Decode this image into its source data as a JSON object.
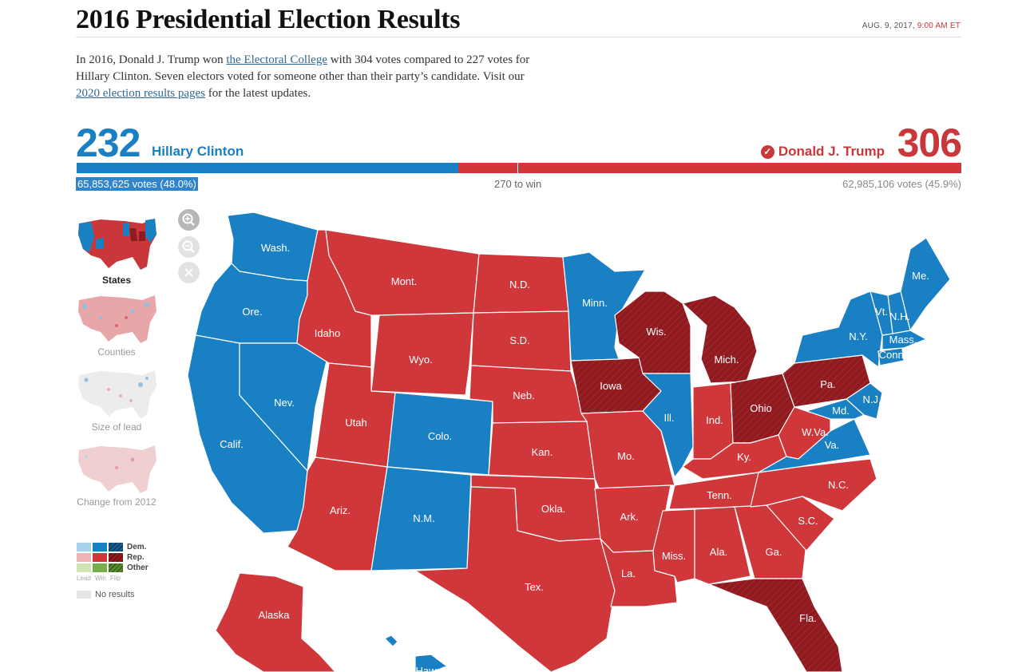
{
  "header": {
    "title": "2016 Presidential Election Results",
    "date": "AUG. 9, 2017,",
    "time": "9:00 AM ET"
  },
  "intro": {
    "t1": "In 2016, Donald J. Trump won ",
    "link1": "the Electoral College",
    "t2": " with 304 votes compared to 227 votes for Hillary Clinton. Seven electors voted for someone other than their party’s candidate. Visit our ",
    "link2": "2020 election results pages",
    "t3": " for the latest updates."
  },
  "tally": {
    "dem_votes": 232,
    "dem_name": "Hillary Clinton",
    "rep_votes": 306,
    "rep_name": "Donald J. Trump",
    "winner": "rep",
    "dem_popular": "65,853,625 votes (48.0%)",
    "rep_popular": "62,985,106 votes (45.9%)",
    "to_win": "270 to win",
    "total_ev": 538,
    "win_threshold": 270
  },
  "controls": {
    "zoom_in_icon": "zoom-in-icon",
    "zoom_out_icon": "zoom-out-icon",
    "reset_icon": "close-icon"
  },
  "map_views": [
    {
      "label": "States",
      "active": true
    },
    {
      "label": "Counties",
      "active": false
    },
    {
      "label": "Size of lead",
      "active": false
    },
    {
      "label": "Change from 2012",
      "active": false
    }
  ],
  "legend": {
    "rows": [
      "Dem.",
      "Rep.",
      "Other"
    ],
    "sub": [
      "Lead",
      "Win",
      "Flip"
    ],
    "no_results": "No results"
  },
  "colors": {
    "dem": "#1a80c4",
    "rep": "#d0373b",
    "rep_flip": "#8e1b20",
    "accent_time": "#c43c34"
  },
  "states": [
    {
      "label": "Wash.",
      "party": "dem"
    },
    {
      "label": "Ore.",
      "party": "dem"
    },
    {
      "label": "Calif.",
      "party": "dem"
    },
    {
      "label": "Nev.",
      "party": "dem"
    },
    {
      "label": "Idaho",
      "party": "rep"
    },
    {
      "label": "Mont.",
      "party": "rep"
    },
    {
      "label": "Wyo.",
      "party": "rep"
    },
    {
      "label": "Utah",
      "party": "rep"
    },
    {
      "label": "Ariz.",
      "party": "rep"
    },
    {
      "label": "Colo.",
      "party": "dem"
    },
    {
      "label": "N.M.",
      "party": "dem"
    },
    {
      "label": "N.D.",
      "party": "rep"
    },
    {
      "label": "S.D.",
      "party": "rep"
    },
    {
      "label": "Neb.",
      "party": "rep"
    },
    {
      "label": "Kan.",
      "party": "rep"
    },
    {
      "label": "Okla.",
      "party": "rep"
    },
    {
      "label": "Tex.",
      "party": "rep"
    },
    {
      "label": "Minn.",
      "party": "dem"
    },
    {
      "label": "Iowa",
      "party": "rep-flip"
    },
    {
      "label": "Mo.",
      "party": "rep"
    },
    {
      "label": "Ark.",
      "party": "rep"
    },
    {
      "label": "La.",
      "party": "rep"
    },
    {
      "label": "Wis.",
      "party": "rep-flip"
    },
    {
      "label": "Ill.",
      "party": "dem"
    },
    {
      "label": "Mich.",
      "party": "rep-flip"
    },
    {
      "label": "Ind.",
      "party": "rep"
    },
    {
      "label": "Ohio",
      "party": "rep-flip"
    },
    {
      "label": "Ky.",
      "party": "rep"
    },
    {
      "label": "Tenn.",
      "party": "rep"
    },
    {
      "label": "Miss.",
      "party": "rep"
    },
    {
      "label": "Ala.",
      "party": "rep"
    },
    {
      "label": "Ga.",
      "party": "rep"
    },
    {
      "label": "Fla.",
      "party": "rep-flip"
    },
    {
      "label": "S.C.",
      "party": "rep"
    },
    {
      "label": "N.C.",
      "party": "rep"
    },
    {
      "label": "Va.",
      "party": "dem"
    },
    {
      "label": "W.Va.",
      "party": "rep"
    },
    {
      "label": "Pa.",
      "party": "rep-flip"
    },
    {
      "label": "N.Y.",
      "party": "dem"
    },
    {
      "label": "Md.",
      "party": "dem"
    },
    {
      "label": "N.J.",
      "party": "dem"
    },
    {
      "label": "Conn.",
      "party": "dem"
    },
    {
      "label": "Mass.",
      "party": "dem"
    },
    {
      "label": "N.H.",
      "party": "dem"
    },
    {
      "label": "Vt.",
      "party": "dem"
    },
    {
      "label": "Me.",
      "party": "dem"
    },
    {
      "label": "Alaska",
      "party": "rep"
    },
    {
      "label": "Hawaii",
      "party": "dem"
    }
  ]
}
